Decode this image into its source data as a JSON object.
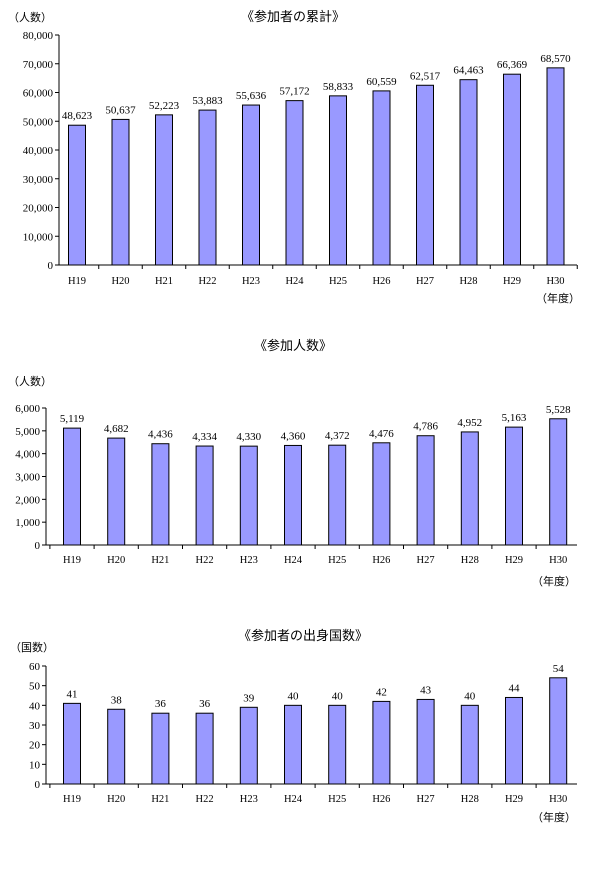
{
  "chart_data": [
    {
      "type": "bar",
      "title": "《参加者の累計》",
      "ylabel": "（人数）",
      "xlabel": "（年度）",
      "ylim": [
        0,
        80000
      ],
      "yticks": [
        "0",
        "10,000",
        "20,000",
        "30,000",
        "40,000",
        "50,000",
        "60,000",
        "70,000",
        "80,000"
      ],
      "categories": [
        "H19",
        "H20",
        "H21",
        "H22",
        "H23",
        "H24",
        "H25",
        "H26",
        "H27",
        "H28",
        "H29",
        "H30"
      ],
      "values": [
        48623,
        50637,
        52223,
        53883,
        55636,
        57172,
        58833,
        60559,
        62517,
        64463,
        66369,
        68570
      ],
      "data_labels": [
        "48,623",
        "50,637",
        "52,223",
        "53,883",
        "55,636",
        "57,172",
        "58,833",
        "60,559",
        "62,517",
        "64,463",
        "66,369",
        "68,570"
      ],
      "bar_color": "#9999ff"
    },
    {
      "type": "bar",
      "title": "《参加人数》",
      "ylabel": "（人数）",
      "xlabel": "（年度）",
      "ylim": [
        0,
        6000
      ],
      "yticks": [
        "0",
        "1,000",
        "2,000",
        "3,000",
        "4,000",
        "5,000",
        "6,000"
      ],
      "categories": [
        "H19",
        "H20",
        "H21",
        "H22",
        "H23",
        "H24",
        "H25",
        "H26",
        "H27",
        "H28",
        "H29",
        "H30"
      ],
      "values": [
        5119,
        4682,
        4436,
        4334,
        4330,
        4360,
        4372,
        4476,
        4786,
        4952,
        5163,
        5528
      ],
      "data_labels": [
        "5,119",
        "4,682",
        "4,436",
        "4,334",
        "4,330",
        "4,360",
        "4,372",
        "4,476",
        "4,786",
        "4,952",
        "5,163",
        "5,528"
      ],
      "bar_color": "#9999ff"
    },
    {
      "type": "bar",
      "title": "《参加者の出身国数》",
      "ylabel": "（国数）",
      "xlabel": "（年度）",
      "ylim": [
        0,
        60
      ],
      "yticks": [
        "0",
        "10",
        "20",
        "30",
        "40",
        "50",
        "60"
      ],
      "categories": [
        "H19",
        "H20",
        "H21",
        "H22",
        "H23",
        "H24",
        "H25",
        "H26",
        "H27",
        "H28",
        "H29",
        "H30"
      ],
      "values": [
        41,
        38,
        36,
        36,
        39,
        40,
        40,
        42,
        43,
        40,
        44,
        54
      ],
      "data_labels": [
        "41",
        "38",
        "36",
        "36",
        "39",
        "40",
        "40",
        "42",
        "43",
        "40",
        "44",
        "54"
      ],
      "bar_color": "#9999ff"
    }
  ]
}
